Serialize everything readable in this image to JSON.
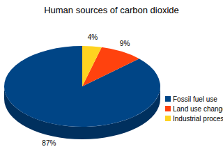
{
  "chart_data": {
    "type": "pie",
    "title": "Human sources of carbon dioxide",
    "categories": [
      "Fossil fuel use",
      "Land use changes",
      "Industrial processes"
    ],
    "values": [
      87,
      9,
      4
    ],
    "value_labels": [
      "87%",
      "9%",
      "4%"
    ],
    "colors": [
      "#004586",
      "#ff420e",
      "#ffd320"
    ],
    "data_labels": true,
    "legend": "right"
  }
}
